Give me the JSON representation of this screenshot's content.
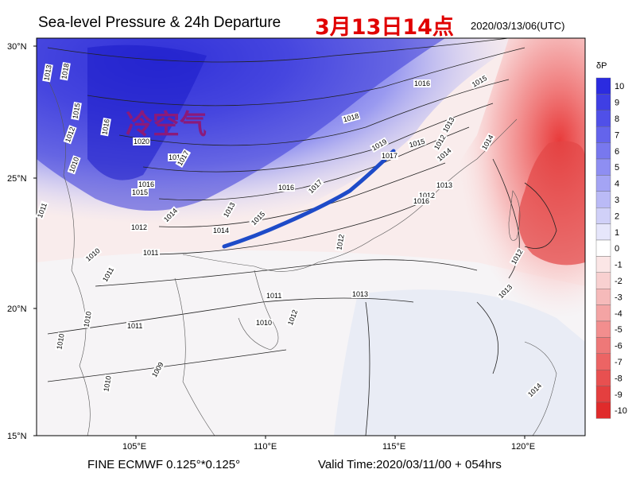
{
  "title": {
    "main": "Sea-level Pressure & 24h Departure",
    "cn_time": "3月13日14点",
    "utc_time": "2020/03/13/06(UTC)"
  },
  "footer": {
    "left": "FINE ECMWF 0.125°*0.125°",
    "right": "Valid Time:2020/03/11/00 + 054hrs"
  },
  "map": {
    "lat_labels": [
      "30°N",
      "25°N",
      "20°N",
      "15°N"
    ],
    "lon_labels": [
      "105°E",
      "110°E",
      "115°E",
      "120°E"
    ],
    "annotation": "冷空气",
    "isobar_labels": [
      "1013",
      "1018",
      "1015",
      "1012",
      "1016",
      "1010",
      "1020",
      "1018",
      "1015",
      "1017",
      "1016",
      "1014",
      "1013",
      "1014",
      "1015",
      "1016",
      "1017",
      "1019",
      "1018",
      "1016",
      "1015",
      "1014",
      "1013",
      "1012",
      "1011",
      "1012",
      "1011",
      "1010",
      "1011",
      "1010",
      "1009",
      "1010",
      "1013",
      "1012",
      "1011",
      "1013",
      "1014",
      "1015",
      "1017",
      "1016",
      "1012",
      "1010",
      "1012",
      "1011",
      "1014",
      "1012",
      "1013",
      "1010"
    ],
    "front_color": "#1e4bc8"
  },
  "colorbar": {
    "title": "δP",
    "levels": [
      "10",
      "9",
      "8",
      "7",
      "6",
      "5",
      "4",
      "3",
      "2",
      "1",
      "0",
      "-1",
      "-2",
      "-3",
      "-4",
      "-5",
      "-6",
      "-7",
      "-8",
      "-9",
      "-10"
    ],
    "colors": [
      "#2b2be0",
      "#3f3fe4",
      "#5050e8",
      "#6464ec",
      "#7878ee",
      "#8e8ef2",
      "#a4a4f4",
      "#babaf6",
      "#d0d0f8",
      "#e6e6fb",
      "#ffffff",
      "#fbe6e6",
      "#f8d0d0",
      "#f6baba",
      "#f4a4a4",
      "#f28e8e",
      "#ee7878",
      "#ec6464",
      "#e85050",
      "#e43f3f",
      "#e02b2b"
    ]
  }
}
